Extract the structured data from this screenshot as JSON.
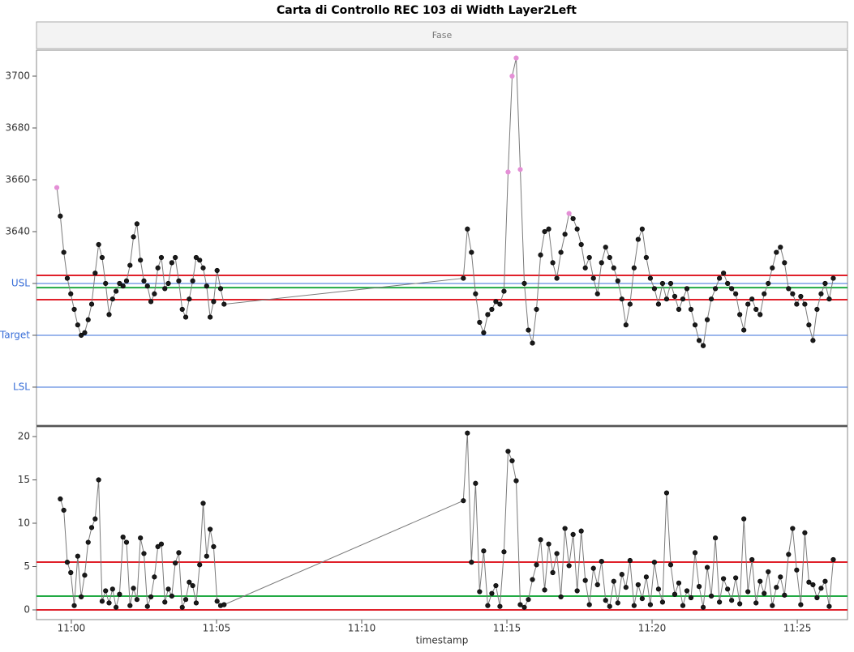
{
  "chart_data": {
    "type": "control",
    "title": "Carta di Controllo REC 103 di Width Layer2Left",
    "header": "Fase",
    "xlabel": "timestamp",
    "line_color": "#7a7a7a",
    "point_color": "#1a1a1a",
    "alarm_color": "#e48fd6",
    "limit_color": "#e0202a",
    "center_color": "#22aa44",
    "spec_color": "#3a6fd8",
    "xlim": [
      658.8,
      686.73
    ],
    "xticks": [
      {
        "value": 660,
        "label": "11:00"
      },
      {
        "value": 665,
        "label": "11:05"
      },
      {
        "value": 670,
        "label": "11:10"
      },
      {
        "value": 675,
        "label": "11:15"
      },
      {
        "value": 680,
        "label": "11:20"
      },
      {
        "value": 685,
        "label": "11:25"
      }
    ],
    "x": [
      659.5,
      659.62,
      659.74,
      659.86,
      659.98,
      660.1,
      660.22,
      660.34,
      660.46,
      660.58,
      660.7,
      660.82,
      660.94,
      661.06,
      661.18,
      661.3,
      661.42,
      661.54,
      661.66,
      661.78,
      661.9,
      662.02,
      662.14,
      662.26,
      662.38,
      662.5,
      662.62,
      662.74,
      662.86,
      662.98,
      663.1,
      663.22,
      663.34,
      663.46,
      663.58,
      663.7,
      663.82,
      663.94,
      664.06,
      664.18,
      664.3,
      664.42,
      664.54,
      664.66,
      664.78,
      664.9,
      665.02,
      665.14,
      665.26,
      673.5,
      673.64,
      673.78,
      673.92,
      674.06,
      674.2,
      674.34,
      674.48,
      674.62,
      674.76,
      674.9,
      675.04,
      675.18,
      675.32,
      675.46,
      675.6,
      675.74,
      675.88,
      676.02,
      676.16,
      676.3,
      676.44,
      676.58,
      676.72,
      676.86,
      677,
      677.14,
      677.28,
      677.42,
      677.56,
      677.7,
      677.84,
      677.98,
      678.12,
      678.26,
      678.4,
      678.54,
      678.68,
      678.82,
      678.96,
      679.1,
      679.24,
      679.38,
      679.52,
      679.66,
      679.8,
      679.94,
      680.08,
      680.22,
      680.36,
      680.5,
      680.64,
      680.78,
      680.92,
      681.06,
      681.2,
      681.34,
      681.48,
      681.62,
      681.76,
      681.9,
      682.04,
      682.18,
      682.32,
      682.46,
      682.6,
      682.74,
      682.88,
      683.02,
      683.16,
      683.3,
      683.44,
      683.58,
      683.72,
      683.86,
      684,
      684.14,
      684.28,
      684.42,
      684.56,
      684.7,
      684.84,
      684.98,
      685.12,
      685.26,
      685.4,
      685.54,
      685.68,
      685.82,
      685.96,
      686.1,
      686.24
    ],
    "panels": [
      {
        "ylim": [
          3565.3,
          3710
        ],
        "yticks": [
          {
            "value": 3580,
            "label": "LSL"
          },
          {
            "value": 3600,
            "label": "Target"
          },
          {
            "value": 3620,
            "label": "USL"
          },
          3640,
          3660,
          3680,
          3700
        ],
        "limits": {
          "ucl": 3623.1,
          "center": 3618.4,
          "lcl": 3613.75
        },
        "alarm": [
          0,
          60,
          61,
          62,
          63,
          75
        ],
        "values": [
          3657,
          3646,
          3632,
          3622,
          3616,
          3610,
          3604,
          3600,
          3601,
          3606,
          3612,
          3624,
          3635,
          3630,
          3620,
          3608,
          3614,
          3617,
          3620,
          3619,
          3621,
          3627,
          3638,
          3643,
          3629,
          3621,
          3619,
          3613,
          3616,
          3626,
          3630,
          3618,
          3620,
          3628,
          3630,
          3621,
          3610,
          3607,
          3614,
          3621,
          3630,
          3629,
          3626,
          3619,
          3607,
          3613,
          3625,
          3618,
          3612,
          3622,
          3641,
          3632,
          3616,
          3605,
          3601,
          3608,
          3610,
          3613,
          3612,
          3617,
          3663,
          3700,
          3707,
          3664,
          3620,
          3602,
          3597,
          3610,
          3631,
          3640,
          3641,
          3628,
          3622,
          3632,
          3639,
          3647,
          3645,
          3641,
          3635,
          3626,
          3630,
          3622,
          3616,
          3628,
          3634,
          3630,
          3626,
          3621,
          3614,
          3604,
          3612,
          3626,
          3637,
          3641,
          3630,
          3622,
          3618,
          3612,
          3620,
          3614,
          3620,
          3615,
          3610,
          3614,
          3618,
          3610,
          3604,
          3598,
          3596,
          3606,
          3614,
          3618,
          3622,
          3624,
          3620,
          3618,
          3616,
          3608,
          3602,
          3612,
          3614,
          3610,
          3608,
          3616,
          3620,
          3626,
          3632,
          3634,
          3628,
          3618,
          3616,
          3612,
          3615,
          3612,
          3604,
          3598,
          3610,
          3616,
          3620,
          3614,
          3622
        ]
      },
      {
        "ylim": [
          -1.12,
          21.12
        ],
        "yticks": [
          0,
          5,
          10,
          15,
          20
        ],
        "limits": {
          "ucl": 5.51,
          "center": 1.59,
          "lcl": 0
        },
        "alarm": [],
        "values": [
          null,
          12.8,
          11.5,
          5.5,
          4.3,
          0.5,
          6.2,
          1.5,
          4,
          7.8,
          9.5,
          10.5,
          15,
          1,
          2.2,
          0.8,
          2.4,
          0.3,
          1.8,
          8.4,
          7.8,
          0.5,
          2.5,
          1.2,
          8.3,
          6.5,
          0.4,
          1.5,
          3.8,
          7.3,
          7.6,
          0.9,
          2.4,
          1.6,
          5.4,
          6.6,
          0.3,
          1.2,
          3.2,
          2.8,
          0.8,
          5.2,
          12.3,
          6.2,
          9.3,
          7.3,
          1,
          0.5,
          0.6,
          12.6,
          20.4,
          5.5,
          14.6,
          2.1,
          6.8,
          0.5,
          1.9,
          2.8,
          0.4,
          6.7,
          18.3,
          17.2,
          14.9,
          0.6,
          0.3,
          1.2,
          3.5,
          5.2,
          8.1,
          2.3,
          7.6,
          4.3,
          6.5,
          1.5,
          9.4,
          5.1,
          8.7,
          2.2,
          9.1,
          3.4,
          0.6,
          4.8,
          2.9,
          5.6,
          1.1,
          0.4,
          3.3,
          0.8,
          4.1,
          2.6,
          5.7,
          0.5,
          2.9,
          1.3,
          3.8,
          0.6,
          5.5,
          2.4,
          0.9,
          13.5,
          5.2,
          1.8,
          3.1,
          0.5,
          2.2,
          1.4,
          6.6,
          2.7,
          0.3,
          4.9,
          1.6,
          8.3,
          0.9,
          3.6,
          2.4,
          1.1,
          3.7,
          0.7,
          10.5,
          2.1,
          5.8,
          0.8,
          3.3,
          1.9,
          4.4,
          0.5,
          2.6,
          3.8,
          1.7,
          6.4,
          9.4,
          4.6,
          0.6,
          8.9,
          3.2,
          2.9,
          1.4,
          2.5,
          3.3,
          0.4,
          5.8
        ]
      }
    ]
  }
}
